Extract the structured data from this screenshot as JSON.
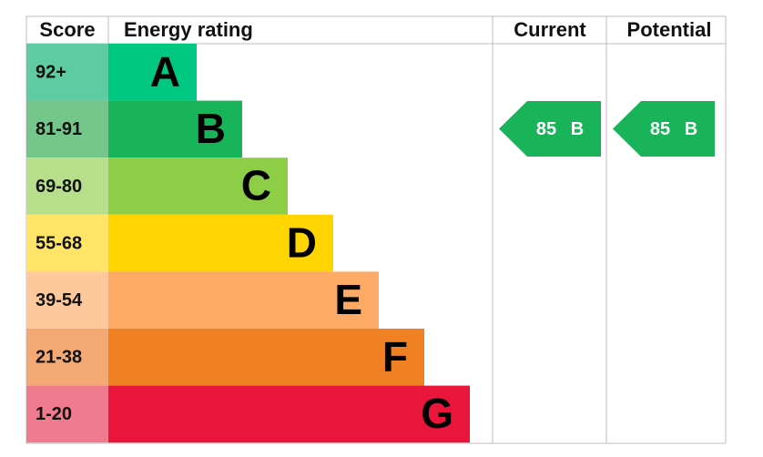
{
  "header": {
    "score": "Score",
    "energy_rating": "Energy rating",
    "current": "Current",
    "potential": "Potential"
  },
  "rows": [
    {
      "score": "92+",
      "rating": "A"
    },
    {
      "score": "81-91",
      "rating": "B"
    },
    {
      "score": "69-80",
      "rating": "C"
    },
    {
      "score": "55-68",
      "rating": "D"
    },
    {
      "score": "39-54",
      "rating": "E"
    },
    {
      "score": "21-38",
      "rating": "F"
    },
    {
      "score": "1-20",
      "rating": "G"
    }
  ],
  "current": {
    "score": 85,
    "rating": "B"
  },
  "potential": {
    "score": 85,
    "rating": "B"
  }
}
